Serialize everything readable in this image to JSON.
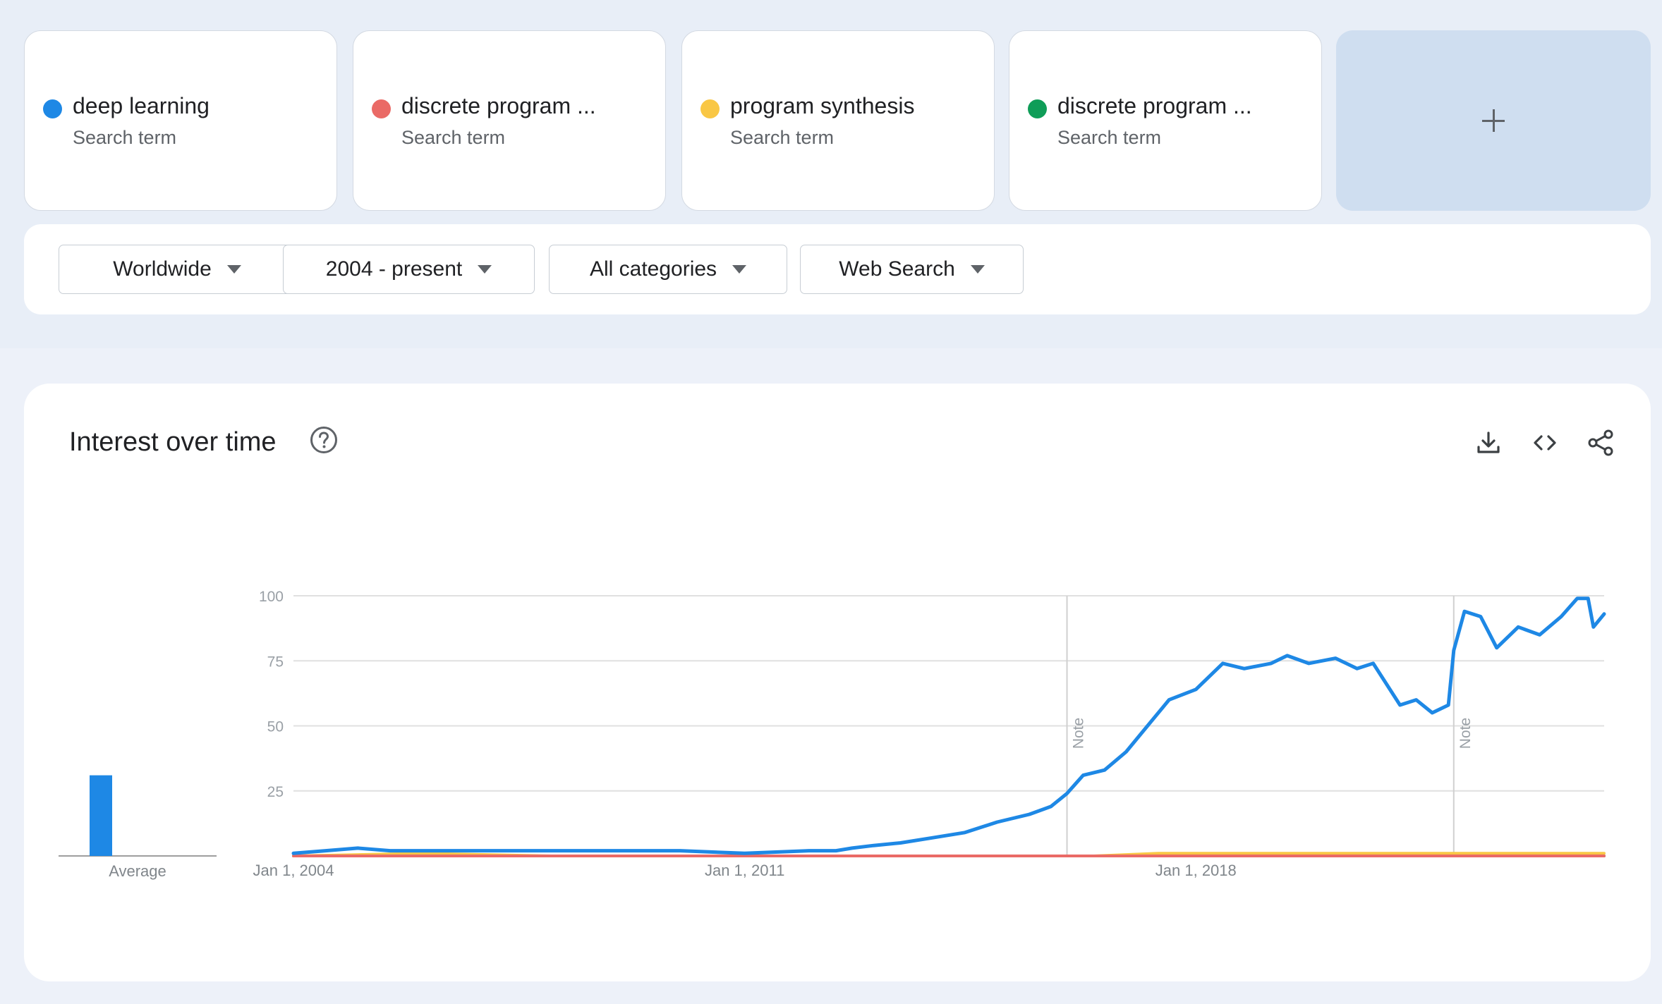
{
  "terms": [
    {
      "name": "deep learning",
      "sub": "Search term",
      "color": "#1e88e5"
    },
    {
      "name": "discrete program ...",
      "sub": "Search term",
      "color": "#ea6a66"
    },
    {
      "name": "program synthesis",
      "sub": "Search term",
      "color": "#f9c745"
    },
    {
      "name": "discrete program ...",
      "sub": "Search term",
      "color": "#0f9d58"
    }
  ],
  "add_term_icon": "plus-icon",
  "filters": {
    "region": "Worldwide",
    "time": "2004 - present",
    "category": "All categories",
    "search_type": "Web Search"
  },
  "chart": {
    "title": "Interest over time",
    "actions": [
      "download-icon",
      "embed-code-icon",
      "share-icon"
    ],
    "average_label": "Average"
  },
  "chart_data": {
    "type": "line",
    "title": "Interest over time",
    "ylim": [
      0,
      100
    ],
    "yticks": [
      25,
      50,
      75,
      100
    ],
    "xlim": [
      "2004-01",
      "2024-05"
    ],
    "xticks": [
      {
        "date": "2004-01",
        "label": "Jan 1, 2004"
      },
      {
        "date": "2011-01",
        "label": "Jan 1, 2011"
      },
      {
        "date": "2018-01",
        "label": "Jan 1, 2018"
      }
    ],
    "grid": true,
    "annotations": [
      {
        "date": "2016-01",
        "label": "Note"
      },
      {
        "date": "2022-01",
        "label": "Note"
      }
    ],
    "averages": {
      "deep learning": 31,
      "discrete program ...": 0,
      "program synthesis": 0
    },
    "series": [
      {
        "name": "deep learning",
        "color": "#1e88e5",
        "points": [
          [
            "2004-01",
            1
          ],
          [
            "2004-07",
            2
          ],
          [
            "2005-01",
            3
          ],
          [
            "2005-07",
            2
          ],
          [
            "2006-01",
            2
          ],
          [
            "2007-01",
            2
          ],
          [
            "2008-01",
            2
          ],
          [
            "2009-01",
            2
          ],
          [
            "2010-01",
            2
          ],
          [
            "2011-01",
            1
          ],
          [
            "2012-01",
            2
          ],
          [
            "2012-06",
            2
          ],
          [
            "2012-09",
            3
          ],
          [
            "2013-01",
            4
          ],
          [
            "2013-06",
            5
          ],
          [
            "2013-12",
            7
          ],
          [
            "2014-06",
            9
          ],
          [
            "2014-12",
            13
          ],
          [
            "2015-06",
            16
          ],
          [
            "2015-10",
            19
          ],
          [
            "2016-01",
            24
          ],
          [
            "2016-04",
            31
          ],
          [
            "2016-08",
            33
          ],
          [
            "2016-12",
            40
          ],
          [
            "2017-04",
            50
          ],
          [
            "2017-08",
            60
          ],
          [
            "2018-01",
            64
          ],
          [
            "2018-06",
            74
          ],
          [
            "2018-10",
            72
          ],
          [
            "2019-03",
            74
          ],
          [
            "2019-06",
            77
          ],
          [
            "2019-10",
            74
          ],
          [
            "2020-03",
            76
          ],
          [
            "2020-07",
            72
          ],
          [
            "2020-10",
            74
          ],
          [
            "2021-03",
            58
          ],
          [
            "2021-06",
            60
          ],
          [
            "2021-09",
            55
          ],
          [
            "2021-12",
            58
          ],
          [
            "2022-01",
            79
          ],
          [
            "2022-03",
            94
          ],
          [
            "2022-06",
            92
          ],
          [
            "2022-09",
            80
          ],
          [
            "2023-01",
            88
          ],
          [
            "2023-05",
            85
          ],
          [
            "2023-09",
            92
          ],
          [
            "2023-12",
            99
          ],
          [
            "2024-02",
            99
          ],
          [
            "2024-03",
            88
          ],
          [
            "2024-05",
            93
          ]
        ]
      },
      {
        "name": "discrete program ...",
        "color": "#ea6a66",
        "points": [
          [
            "2004-01",
            0
          ],
          [
            "2024-05",
            0
          ]
        ]
      },
      {
        "name": "program synthesis",
        "color": "#f9c745",
        "points": [
          [
            "2004-01",
            0
          ],
          [
            "2006-01",
            1
          ],
          [
            "2008-01",
            0
          ],
          [
            "2010-01",
            0
          ],
          [
            "2012-01",
            0
          ],
          [
            "2016-06",
            0
          ],
          [
            "2017-06",
            1
          ],
          [
            "2022-01",
            1
          ],
          [
            "2023-06",
            1
          ],
          [
            "2024-05",
            1
          ]
        ]
      },
      {
        "name": "discrete program ...",
        "color": "#0f9d58",
        "points": [
          [
            "2004-01",
            0
          ],
          [
            "2024-05",
            0
          ]
        ]
      }
    ]
  }
}
